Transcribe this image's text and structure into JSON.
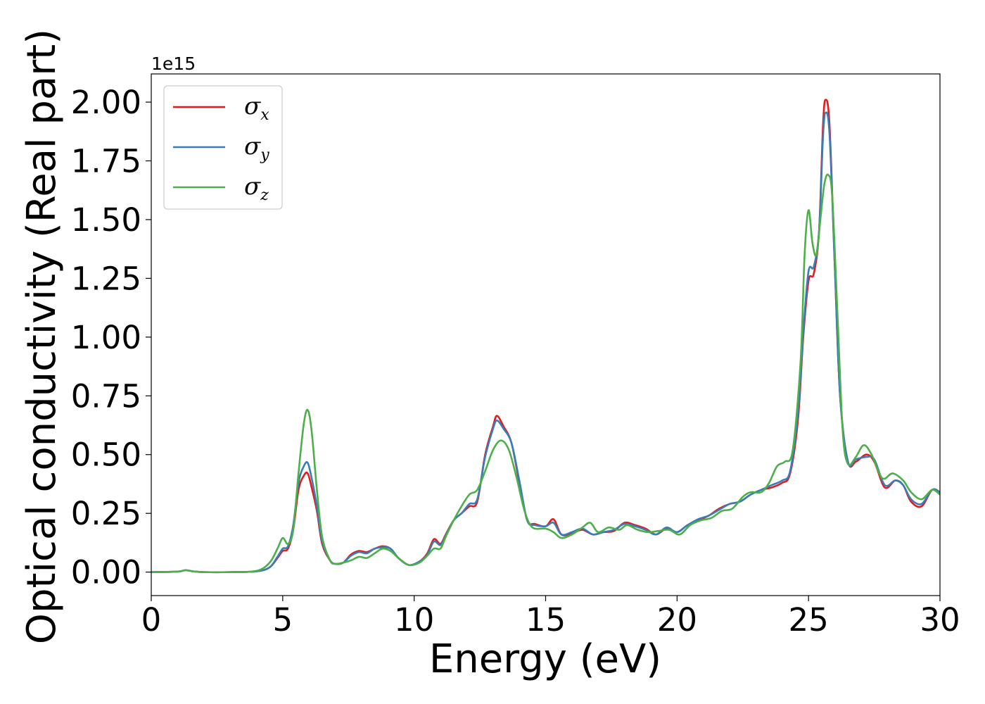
{
  "chart_data": {
    "type": "line",
    "title": "",
    "xlabel": "Energy (eV)",
    "ylabel": "Optical conductivity (Real part)",
    "y_offset_label": "1e15",
    "xlim": [
      0,
      30
    ],
    "ylim": [
      -0.1,
      2.12
    ],
    "xticks": [
      0,
      5,
      10,
      15,
      20,
      25,
      30
    ],
    "xtick_labels": [
      "0",
      "5",
      "10",
      "15",
      "20",
      "25",
      "30"
    ],
    "yticks": [
      0.0,
      0.25,
      0.5,
      0.75,
      1.0,
      1.25,
      1.5,
      1.75,
      2.0
    ],
    "ytick_labels": [
      "0.00",
      "0.25",
      "0.50",
      "0.75",
      "1.00",
      "1.25",
      "1.50",
      "1.75",
      "2.00"
    ],
    "grid": false,
    "legend_position": "top-left",
    "series": [
      {
        "name": "σx",
        "symbol": "σ",
        "sub": "x",
        "color": "#e41a1c",
        "points": [
          [
            0,
            0
          ],
          [
            1,
            0.002
          ],
          [
            1.3,
            0.008
          ],
          [
            1.6,
            0.003
          ],
          [
            2,
            0
          ],
          [
            3,
            0
          ],
          [
            4,
            0.003
          ],
          [
            4.5,
            0.02
          ],
          [
            4.8,
            0.06
          ],
          [
            5,
            0.09
          ],
          [
            5.2,
            0.1
          ],
          [
            5.4,
            0.18
          ],
          [
            5.6,
            0.35
          ],
          [
            5.8,
            0.41
          ],
          [
            5.95,
            0.42
          ],
          [
            6.1,
            0.36
          ],
          [
            6.3,
            0.26
          ],
          [
            6.5,
            0.12
          ],
          [
            6.8,
            0.05
          ],
          [
            7,
            0.035
          ],
          [
            7.3,
            0.04
          ],
          [
            7.6,
            0.075
          ],
          [
            7.9,
            0.09
          ],
          [
            8.2,
            0.085
          ],
          [
            8.5,
            0.1
          ],
          [
            8.8,
            0.11
          ],
          [
            9.1,
            0.1
          ],
          [
            9.4,
            0.06
          ],
          [
            9.8,
            0.03
          ],
          [
            10.2,
            0.045
          ],
          [
            10.5,
            0.08
          ],
          [
            10.75,
            0.14
          ],
          [
            11,
            0.12
          ],
          [
            11.2,
            0.16
          ],
          [
            11.5,
            0.22
          ],
          [
            11.8,
            0.25
          ],
          [
            12.1,
            0.28
          ],
          [
            12.4,
            0.3
          ],
          [
            12.7,
            0.5
          ],
          [
            13,
            0.62
          ],
          [
            13.15,
            0.665
          ],
          [
            13.4,
            0.62
          ],
          [
            13.7,
            0.55
          ],
          [
            14,
            0.38
          ],
          [
            14.3,
            0.22
          ],
          [
            14.6,
            0.205
          ],
          [
            15,
            0.195
          ],
          [
            15.3,
            0.225
          ],
          [
            15.6,
            0.16
          ],
          [
            16,
            0.165
          ],
          [
            16.4,
            0.18
          ],
          [
            16.8,
            0.16
          ],
          [
            17.2,
            0.17
          ],
          [
            17.6,
            0.175
          ],
          [
            18,
            0.21
          ],
          [
            18.4,
            0.2
          ],
          [
            18.8,
            0.185
          ],
          [
            19.2,
            0.16
          ],
          [
            19.6,
            0.185
          ],
          [
            20,
            0.17
          ],
          [
            20.4,
            0.2
          ],
          [
            20.8,
            0.22
          ],
          [
            21.2,
            0.24
          ],
          [
            21.6,
            0.27
          ],
          [
            22,
            0.29
          ],
          [
            22.4,
            0.3
          ],
          [
            22.8,
            0.33
          ],
          [
            23.2,
            0.35
          ],
          [
            23.6,
            0.36
          ],
          [
            24,
            0.38
          ],
          [
            24.3,
            0.42
          ],
          [
            24.6,
            0.65
          ],
          [
            24.8,
            1.0
          ],
          [
            25,
            1.24
          ],
          [
            25.2,
            1.27
          ],
          [
            25.4,
            1.45
          ],
          [
            25.55,
            1.9
          ],
          [
            25.65,
            2.01
          ],
          [
            25.8,
            1.9
          ],
          [
            26,
            1.3
          ],
          [
            26.2,
            0.75
          ],
          [
            26.5,
            0.47
          ],
          [
            26.8,
            0.47
          ],
          [
            27.2,
            0.5
          ],
          [
            27.5,
            0.47
          ],
          [
            27.9,
            0.36
          ],
          [
            28.3,
            0.39
          ],
          [
            28.6,
            0.37
          ],
          [
            28.9,
            0.3
          ],
          [
            29.3,
            0.28
          ],
          [
            29.7,
            0.35
          ],
          [
            30,
            0.34
          ]
        ]
      },
      {
        "name": "σy",
        "symbol": "σ",
        "sub": "y",
        "color": "#377eb8",
        "points": [
          [
            0,
            0
          ],
          [
            1,
            0.002
          ],
          [
            1.3,
            0.008
          ],
          [
            1.6,
            0.003
          ],
          [
            2,
            0
          ],
          [
            3,
            0
          ],
          [
            4,
            0.003
          ],
          [
            4.5,
            0.02
          ],
          [
            4.8,
            0.065
          ],
          [
            5,
            0.1
          ],
          [
            5.2,
            0.11
          ],
          [
            5.4,
            0.2
          ],
          [
            5.6,
            0.38
          ],
          [
            5.8,
            0.45
          ],
          [
            5.95,
            0.465
          ],
          [
            6.1,
            0.4
          ],
          [
            6.3,
            0.28
          ],
          [
            6.5,
            0.13
          ],
          [
            6.8,
            0.05
          ],
          [
            7,
            0.035
          ],
          [
            7.3,
            0.04
          ],
          [
            7.6,
            0.07
          ],
          [
            7.9,
            0.085
          ],
          [
            8.2,
            0.08
          ],
          [
            8.5,
            0.1
          ],
          [
            8.8,
            0.105
          ],
          [
            9.1,
            0.1
          ],
          [
            9.4,
            0.06
          ],
          [
            9.8,
            0.03
          ],
          [
            10.2,
            0.045
          ],
          [
            10.5,
            0.075
          ],
          [
            10.75,
            0.13
          ],
          [
            11,
            0.115
          ],
          [
            11.2,
            0.155
          ],
          [
            11.5,
            0.22
          ],
          [
            11.8,
            0.25
          ],
          [
            12.1,
            0.29
          ],
          [
            12.4,
            0.31
          ],
          [
            12.7,
            0.49
          ],
          [
            13,
            0.61
          ],
          [
            13.15,
            0.645
          ],
          [
            13.4,
            0.61
          ],
          [
            13.7,
            0.55
          ],
          [
            14,
            0.39
          ],
          [
            14.3,
            0.22
          ],
          [
            14.6,
            0.2
          ],
          [
            15,
            0.195
          ],
          [
            15.3,
            0.21
          ],
          [
            15.6,
            0.16
          ],
          [
            16,
            0.17
          ],
          [
            16.4,
            0.185
          ],
          [
            16.8,
            0.16
          ],
          [
            17.2,
            0.17
          ],
          [
            17.6,
            0.18
          ],
          [
            18,
            0.205
          ],
          [
            18.4,
            0.195
          ],
          [
            18.8,
            0.18
          ],
          [
            19.2,
            0.16
          ],
          [
            19.6,
            0.19
          ],
          [
            20,
            0.17
          ],
          [
            20.4,
            0.2
          ],
          [
            20.8,
            0.225
          ],
          [
            21.2,
            0.24
          ],
          [
            21.6,
            0.265
          ],
          [
            22,
            0.29
          ],
          [
            22.4,
            0.3
          ],
          [
            22.8,
            0.33
          ],
          [
            23.2,
            0.35
          ],
          [
            23.6,
            0.37
          ],
          [
            24,
            0.39
          ],
          [
            24.3,
            0.43
          ],
          [
            24.6,
            0.68
          ],
          [
            24.8,
            1.02
          ],
          [
            25,
            1.28
          ],
          [
            25.2,
            1.3
          ],
          [
            25.4,
            1.45
          ],
          [
            25.55,
            1.85
          ],
          [
            25.65,
            1.955
          ],
          [
            25.8,
            1.86
          ],
          [
            26,
            1.3
          ],
          [
            26.2,
            0.75
          ],
          [
            26.5,
            0.47
          ],
          [
            26.8,
            0.48
          ],
          [
            27.2,
            0.49
          ],
          [
            27.5,
            0.48
          ],
          [
            27.9,
            0.37
          ],
          [
            28.3,
            0.39
          ],
          [
            28.6,
            0.37
          ],
          [
            28.9,
            0.31
          ],
          [
            29.3,
            0.29
          ],
          [
            29.7,
            0.35
          ],
          [
            30,
            0.34
          ]
        ]
      },
      {
        "name": "σz",
        "symbol": "σ",
        "sub": "z",
        "color": "#4daf4a",
        "points": [
          [
            0,
            0
          ],
          [
            1,
            0.002
          ],
          [
            1.3,
            0.008
          ],
          [
            1.6,
            0.003
          ],
          [
            2,
            0
          ],
          [
            3,
            0
          ],
          [
            4,
            0.005
          ],
          [
            4.5,
            0.04
          ],
          [
            4.8,
            0.1
          ],
          [
            5,
            0.145
          ],
          [
            5.2,
            0.12
          ],
          [
            5.4,
            0.18
          ],
          [
            5.6,
            0.42
          ],
          [
            5.8,
            0.63
          ],
          [
            5.95,
            0.69
          ],
          [
            6.1,
            0.6
          ],
          [
            6.3,
            0.35
          ],
          [
            6.5,
            0.15
          ],
          [
            6.8,
            0.05
          ],
          [
            7,
            0.035
          ],
          [
            7.3,
            0.04
          ],
          [
            7.6,
            0.05
          ],
          [
            7.9,
            0.065
          ],
          [
            8.2,
            0.06
          ],
          [
            8.5,
            0.08
          ],
          [
            8.8,
            0.1
          ],
          [
            9.1,
            0.09
          ],
          [
            9.4,
            0.06
          ],
          [
            9.8,
            0.03
          ],
          [
            10.2,
            0.04
          ],
          [
            10.5,
            0.07
          ],
          [
            10.75,
            0.1
          ],
          [
            11,
            0.1
          ],
          [
            11.2,
            0.15
          ],
          [
            11.5,
            0.22
          ],
          [
            11.8,
            0.28
          ],
          [
            12.1,
            0.33
          ],
          [
            12.4,
            0.35
          ],
          [
            12.7,
            0.43
          ],
          [
            13,
            0.52
          ],
          [
            13.3,
            0.56
          ],
          [
            13.6,
            0.52
          ],
          [
            13.9,
            0.4
          ],
          [
            14.2,
            0.26
          ],
          [
            14.5,
            0.19
          ],
          [
            15,
            0.185
          ],
          [
            15.3,
            0.17
          ],
          [
            15.6,
            0.145
          ],
          [
            16,
            0.16
          ],
          [
            16.4,
            0.19
          ],
          [
            16.7,
            0.21
          ],
          [
            17,
            0.17
          ],
          [
            17.4,
            0.19
          ],
          [
            17.8,
            0.18
          ],
          [
            18.1,
            0.2
          ],
          [
            18.5,
            0.18
          ],
          [
            18.9,
            0.17
          ],
          [
            19.3,
            0.175
          ],
          [
            19.7,
            0.18
          ],
          [
            20.1,
            0.16
          ],
          [
            20.5,
            0.2
          ],
          [
            20.9,
            0.22
          ],
          [
            21.3,
            0.23
          ],
          [
            21.7,
            0.26
          ],
          [
            22.1,
            0.27
          ],
          [
            22.5,
            0.32
          ],
          [
            22.8,
            0.34
          ],
          [
            23.2,
            0.34
          ],
          [
            23.5,
            0.38
          ],
          [
            23.8,
            0.45
          ],
          [
            24.1,
            0.47
          ],
          [
            24.4,
            0.52
          ],
          [
            24.7,
            0.9
          ],
          [
            24.85,
            1.35
          ],
          [
            25,
            1.54
          ],
          [
            25.15,
            1.4
          ],
          [
            25.3,
            1.35
          ],
          [
            25.45,
            1.5
          ],
          [
            25.6,
            1.65
          ],
          [
            25.75,
            1.69
          ],
          [
            25.9,
            1.6
          ],
          [
            26.1,
            1.1
          ],
          [
            26.3,
            0.6
          ],
          [
            26.5,
            0.46
          ],
          [
            26.8,
            0.49
          ],
          [
            27.1,
            0.54
          ],
          [
            27.4,
            0.5
          ],
          [
            27.8,
            0.4
          ],
          [
            28.2,
            0.42
          ],
          [
            28.6,
            0.39
          ],
          [
            28.9,
            0.34
          ],
          [
            29.3,
            0.31
          ],
          [
            29.7,
            0.35
          ],
          [
            30,
            0.33
          ]
        ]
      }
    ]
  }
}
